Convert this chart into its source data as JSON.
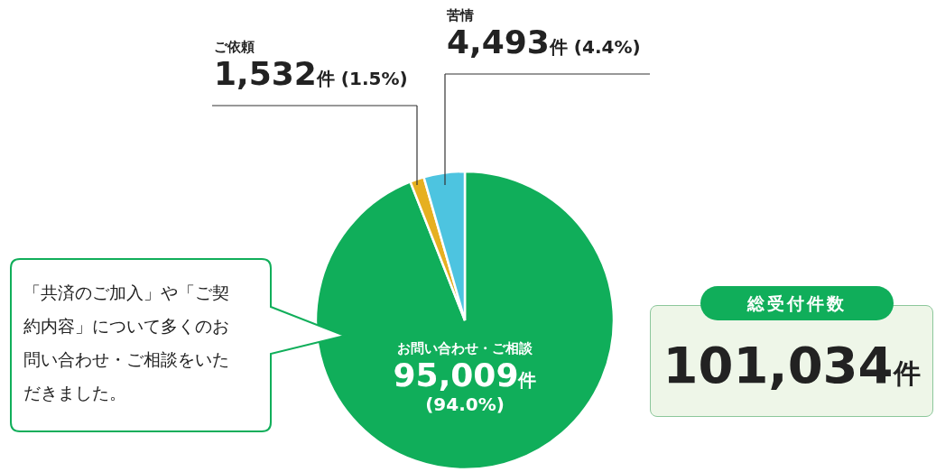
{
  "chart_data": {
    "type": "pie",
    "categories": [
      "お問い合わせ・ご相談",
      "ご依頼",
      "苦情"
    ],
    "values": [
      95009,
      1532,
      4493
    ],
    "colors": [
      "#10ae5a",
      "#e6b021",
      "#4dc4e0"
    ],
    "value_labels": [
      "95,009件 (94.0%)",
      "1,532件 (1.5%)",
      "4,493件 (4.4%)"
    ],
    "annotations": [
      "「共済のご加入」や「ご契約内容」について多くのお問い合わせ・ご相談をいただきました。",
      "総受付件数",
      "101,034件"
    ]
  }
}
